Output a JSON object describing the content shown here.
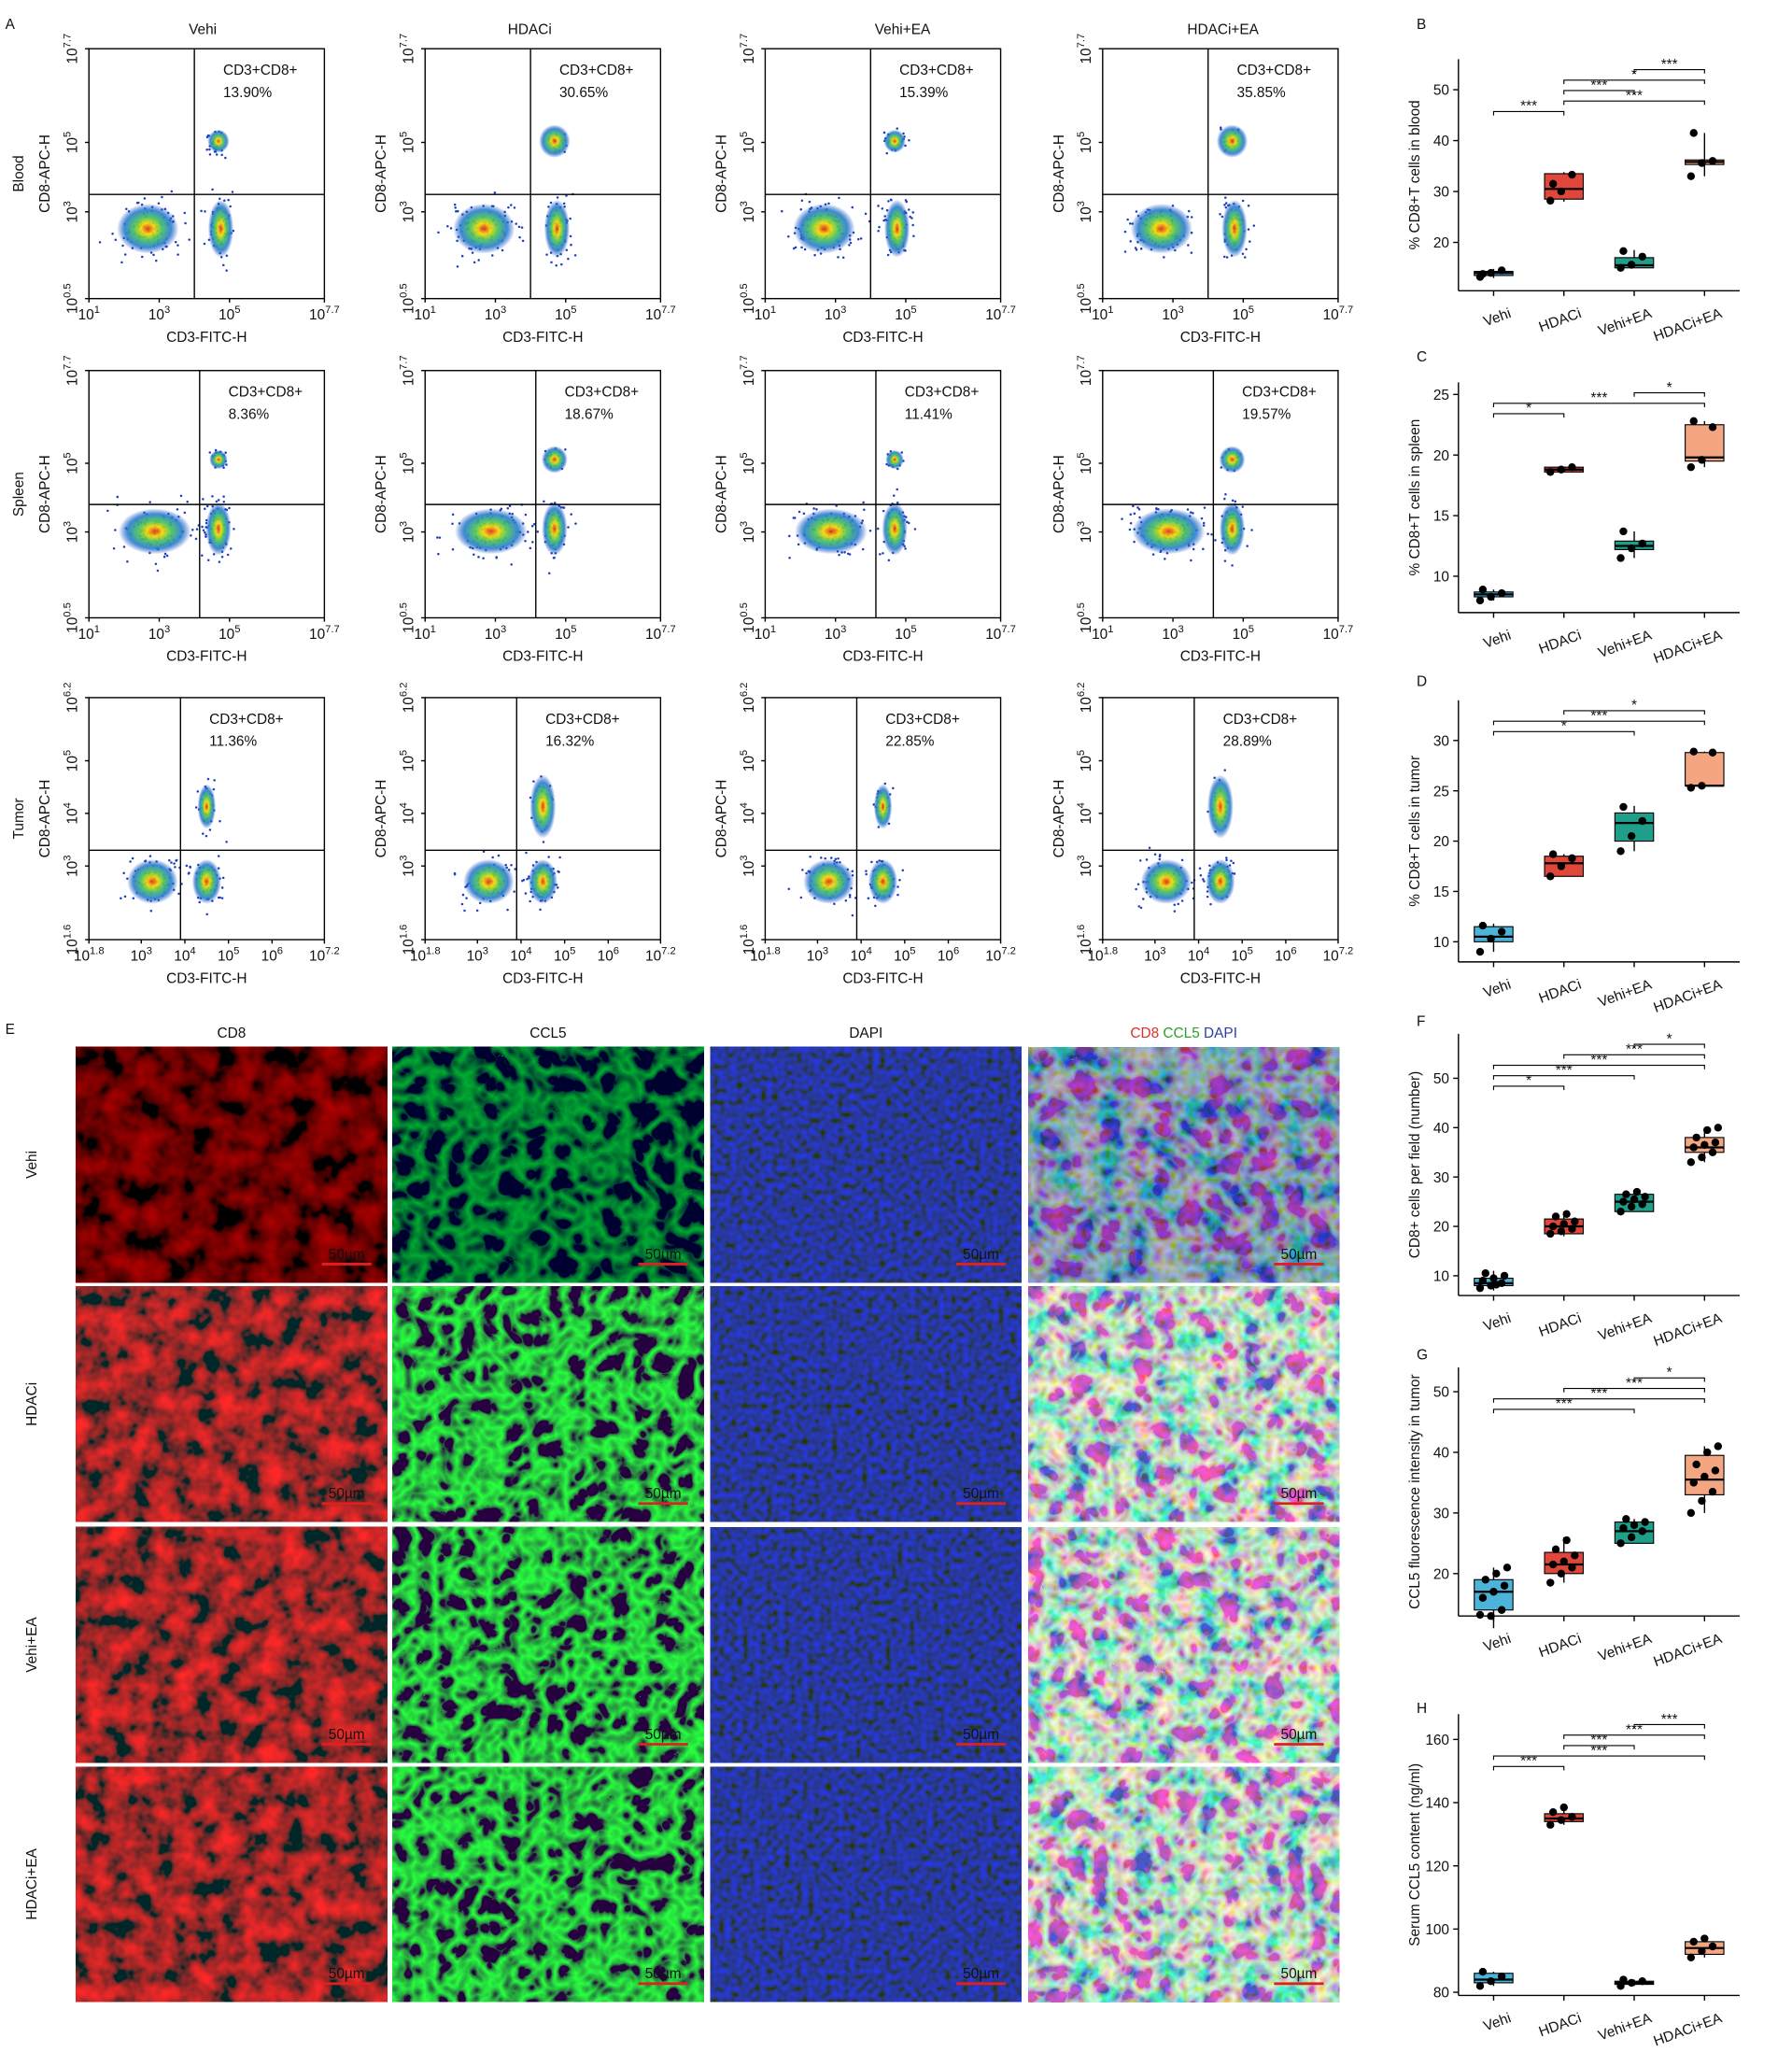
{
  "panel_labels": [
    "A",
    "E"
  ],
  "flow": {
    "columns": [
      "Vehi",
      "HDACi",
      "Vehi+EA",
      "HDACi+EA"
    ],
    "gate_label": "CD3+CD8+",
    "xlabel": "CD3-FITC-H",
    "ylabel": "CD8-APC-H",
    "tick_base": "10",
    "rows": [
      {
        "name": "Blood",
        "xlim": [
          1,
          7.7
        ],
        "xticks": [
          1,
          3,
          5,
          7.7
        ],
        "ylim": [
          0.5,
          7.7
        ],
        "yticks": [
          0.5,
          3,
          5,
          7.7
        ],
        "gate_x": 4,
        "gate_y": 3.5,
        "percentages": [
          "13.90%",
          "30.65%",
          "15.39%",
          "35.85%"
        ]
      },
      {
        "name": "Spleen",
        "xlim": [
          1,
          7.7
        ],
        "xticks": [
          1,
          3,
          5,
          7.7
        ],
        "ylim": [
          0.5,
          7.7
        ],
        "yticks": [
          0.5,
          3,
          5,
          7.7
        ],
        "gate_x": 4.15,
        "gate_y": 3.8,
        "percentages": [
          "8.36%",
          "18.67%",
          "11.41%",
          "19.57%"
        ]
      },
      {
        "name": "Tumor",
        "xlim": [
          1.8,
          7.2
        ],
        "xticks": [
          1.8,
          3,
          4,
          5,
          6,
          7.2
        ],
        "ylim": [
          1.6,
          6.2
        ],
        "yticks": [
          1.6,
          3,
          4,
          5,
          6.2
        ],
        "gate_x": 3.9,
        "gate_y": 3.3,
        "percentages": [
          "11.36%",
          "16.32%",
          "22.85%",
          "28.89%"
        ]
      }
    ]
  },
  "immuno": {
    "channels": [
      "CD8",
      "CCL5",
      "DAPI"
    ],
    "rows": [
      "Vehi",
      "HDACi",
      "Vehi+EA",
      "HDACi+EA"
    ],
    "scale_bar": "50µm"
  },
  "chart_data": [
    {
      "type": "box",
      "panel": "B",
      "ylabel": "% CD8+T cells in blood",
      "categories": [
        "Vehi",
        "HDACi",
        "Vehi+EA",
        "HDACi+EA"
      ],
      "ylim": [
        10.5,
        56
      ],
      "yticks": [
        20,
        30,
        40,
        50
      ],
      "boxes": [
        {
          "color": "#4bb4d8",
          "q1": 13.5,
          "median": 14,
          "q3": 14.3,
          "min": 13,
          "max": 14.8,
          "points": [
            13.2,
            14,
            14.5,
            13.8
          ]
        },
        {
          "color": "#e0463a",
          "q1": 28.5,
          "median": 30.5,
          "q3": 33.5,
          "min": 28,
          "max": 33.8,
          "points": [
            28.2,
            30,
            33.3,
            31.5
          ]
        },
        {
          "color": "#1f9e89",
          "q1": 15,
          "median": 15.5,
          "q3": 17,
          "min": 15,
          "max": 18.5,
          "points": [
            15,
            15.6,
            17.2,
            18.3
          ]
        },
        {
          "color": "#f4a582",
          "q1": 35.3,
          "median": 35.8,
          "q3": 36.2,
          "min": 33,
          "max": 41.5,
          "points": [
            33,
            35.6,
            36,
            41.5
          ]
        }
      ],
      "brackets": [
        {
          "from": 2,
          "to": 3,
          "label": "***"
        },
        {
          "from": 1,
          "to": 3,
          "label": "*"
        },
        {
          "from": 1,
          "to": 2,
          "label": "***"
        },
        {
          "from": 1,
          "to": 3,
          "label": "***"
        },
        {
          "from": 0,
          "to": 1,
          "label": "***"
        }
      ]
    },
    {
      "type": "box",
      "panel": "C",
      "ylabel": "% CD8+T cells in spleen",
      "categories": [
        "Vehi",
        "HDACi",
        "Vehi+EA",
        "HDACi+EA"
      ],
      "ylim": [
        7,
        26
      ],
      "yticks": [
        10,
        15,
        20,
        25
      ],
      "boxes": [
        {
          "color": "#4bb4d8",
          "q1": 8.3,
          "median": 8.5,
          "q3": 8.7,
          "min": 8,
          "max": 8.9,
          "points": [
            8,
            8.3,
            8.6,
            8.9
          ]
        },
        {
          "color": "#e0463a",
          "q1": 18.6,
          "median": 18.8,
          "q3": 19,
          "min": 18.6,
          "max": 19,
          "points": [
            18.6,
            18.8,
            19
          ]
        },
        {
          "color": "#1f9e89",
          "q1": 12.2,
          "median": 12.5,
          "q3": 12.9,
          "min": 11.5,
          "max": 13.7,
          "points": [
            11.5,
            12.3,
            12.7,
            13.7
          ]
        },
        {
          "color": "#f4a582",
          "q1": 19.5,
          "median": 19.8,
          "q3": 22.5,
          "min": 19,
          "max": 22.8,
          "points": [
            19,
            19.6,
            22.3,
            22.8
          ]
        }
      ],
      "brackets": [
        {
          "from": 2,
          "to": 3,
          "label": "*"
        },
        {
          "from": 0,
          "to": 3,
          "label": "***"
        },
        {
          "from": 0,
          "to": 1,
          "label": "*"
        }
      ]
    },
    {
      "type": "box",
      "panel": "D",
      "ylabel": "% CD8+T cells in tumor",
      "categories": [
        "Vehi",
        "HDACi",
        "Vehi+EA",
        "HDACi+EA"
      ],
      "ylim": [
        8,
        34
      ],
      "yticks": [
        10,
        15,
        20,
        25,
        30
      ],
      "boxes": [
        {
          "color": "#4bb4d8",
          "q1": 10,
          "median": 10.5,
          "q3": 11.5,
          "min": 9,
          "max": 11.8,
          "points": [
            9,
            10.3,
            11,
            11.6
          ]
        },
        {
          "color": "#e0463a",
          "q1": 16.5,
          "median": 17.8,
          "q3": 18.5,
          "min": 16.5,
          "max": 18.7,
          "points": [
            16.5,
            17.5,
            18.3,
            18.7
          ]
        },
        {
          "color": "#1f9e89",
          "q1": 20,
          "median": 21.8,
          "q3": 22.8,
          "min": 19,
          "max": 23.5,
          "points": [
            19,
            20.5,
            22,
            23.4
          ]
        },
        {
          "color": "#f4a582",
          "q1": 25.5,
          "median": 25.5,
          "q3": 28.8,
          "min": 25.3,
          "max": 28.9,
          "points": [
            25.3,
            25.5,
            28.8,
            28.9
          ]
        }
      ],
      "brackets": [
        {
          "from": 1,
          "to": 3,
          "label": "*"
        },
        {
          "from": 0,
          "to": 3,
          "label": "***"
        },
        {
          "from": 0,
          "to": 2,
          "label": "*"
        }
      ]
    },
    {
      "type": "box",
      "panel": "F",
      "ylabel": "CD8+ cells per field (number)",
      "categories": [
        "Vehi",
        "HDACi",
        "Vehi+EA",
        "HDACi+EA"
      ],
      "ylim": [
        6,
        59
      ],
      "yticks": [
        10,
        20,
        30,
        40,
        50
      ],
      "boxes": [
        {
          "color": "#4bb4d8",
          "q1": 8,
          "median": 8.5,
          "q3": 9.5,
          "min": 7,
          "max": 11,
          "points": [
            7.5,
            8,
            8.5,
            9,
            9.5,
            10,
            10.5,
            8.2
          ]
        },
        {
          "color": "#e0463a",
          "q1": 18.5,
          "median": 20,
          "q3": 21.5,
          "min": 18,
          "max": 23,
          "points": [
            18.5,
            19,
            19.5,
            20,
            20.5,
            21,
            22,
            22.5
          ]
        },
        {
          "color": "#1f9e89",
          "q1": 23,
          "median": 25,
          "q3": 26.5,
          "min": 23,
          "max": 27,
          "points": [
            23,
            24,
            24.5,
            25,
            25.5,
            26,
            26.5,
            27
          ]
        },
        {
          "color": "#f4a582",
          "q1": 35,
          "median": 36,
          "q3": 38,
          "min": 33,
          "max": 40,
          "points": [
            33,
            34,
            35,
            36,
            36.5,
            37,
            38,
            39.5,
            40
          ]
        }
      ],
      "brackets": [
        {
          "from": 2,
          "to": 3,
          "label": "*"
        },
        {
          "from": 1,
          "to": 3,
          "label": "***"
        },
        {
          "from": 0,
          "to": 3,
          "label": "***"
        },
        {
          "from": 0,
          "to": 2,
          "label": "***"
        },
        {
          "from": 0,
          "to": 1,
          "label": "*"
        }
      ]
    },
    {
      "type": "box",
      "panel": "G",
      "ylabel": "CCL5 fluorescence intensity in tumor",
      "categories": [
        "Vehi",
        "HDACi",
        "Vehi+EA",
        "HDACi+EA"
      ],
      "ylim": [
        13,
        54
      ],
      "yticks": [
        20,
        30,
        40,
        50
      ],
      "boxes": [
        {
          "color": "#4bb4d8",
          "q1": 14,
          "median": 17,
          "q3": 19,
          "min": 11,
          "max": 21,
          "points": [
            13.2,
            13,
            14,
            16,
            17,
            18,
            19,
            20,
            21
          ]
        },
        {
          "color": "#e0463a",
          "q1": 20,
          "median": 21.5,
          "q3": 23.5,
          "min": 18.5,
          "max": 26,
          "points": [
            18.5,
            20,
            21,
            21.5,
            22,
            23,
            24,
            25.5
          ]
        },
        {
          "color": "#1f9e89",
          "q1": 25,
          "median": 27,
          "q3": 28.5,
          "min": 25,
          "max": 29,
          "points": [
            25,
            26,
            27,
            27.5,
            28,
            28.5,
            29
          ]
        },
        {
          "color": "#f4a582",
          "q1": 33,
          "median": 35.5,
          "q3": 39.5,
          "min": 30,
          "max": 41,
          "points": [
            30,
            32,
            33.5,
            35,
            36,
            37,
            38,
            40,
            41
          ]
        }
      ],
      "brackets": [
        {
          "from": 2,
          "to": 3,
          "label": "*"
        },
        {
          "from": 1,
          "to": 3,
          "label": "***"
        },
        {
          "from": 0,
          "to": 3,
          "label": "***"
        },
        {
          "from": 0,
          "to": 2,
          "label": "***"
        }
      ]
    },
    {
      "type": "box",
      "panel": "H",
      "ylabel": "Serum CCL5 content (ng/ml)",
      "categories": [
        "Vehi",
        "HDACi",
        "Vehi+EA",
        "HDACi+EA"
      ],
      "ylim": [
        79,
        168
      ],
      "yticks": [
        80,
        100,
        120,
        140,
        160
      ],
      "boxes": [
        {
          "color": "#4bb4d8",
          "q1": 83,
          "median": 84,
          "q3": 86,
          "min": 82,
          "max": 86.5,
          "points": [
            82,
            83.5,
            85,
            86.5
          ]
        },
        {
          "color": "#e0463a",
          "q1": 134,
          "median": 135,
          "q3": 136.5,
          "min": 133,
          "max": 138.5,
          "points": [
            133,
            134.5,
            135.5,
            137,
            138.5
          ]
        },
        {
          "color": "#1f9e89",
          "q1": 82.5,
          "median": 83,
          "q3": 83.5,
          "min": 82,
          "max": 84,
          "points": [
            82,
            83,
            83.5,
            84
          ]
        },
        {
          "color": "#f4a582",
          "q1": 92,
          "median": 94,
          "q3": 96,
          "min": 91,
          "max": 97,
          "points": [
            91,
            93,
            94.5,
            96,
            97
          ]
        }
      ],
      "brackets": [
        {
          "from": 2,
          "to": 3,
          "label": "***"
        },
        {
          "from": 1,
          "to": 3,
          "label": "***"
        },
        {
          "from": 1,
          "to": 2,
          "label": "***"
        },
        {
          "from": 0,
          "to": 3,
          "label": "***"
        },
        {
          "from": 0,
          "to": 1,
          "label": "***"
        }
      ]
    }
  ]
}
